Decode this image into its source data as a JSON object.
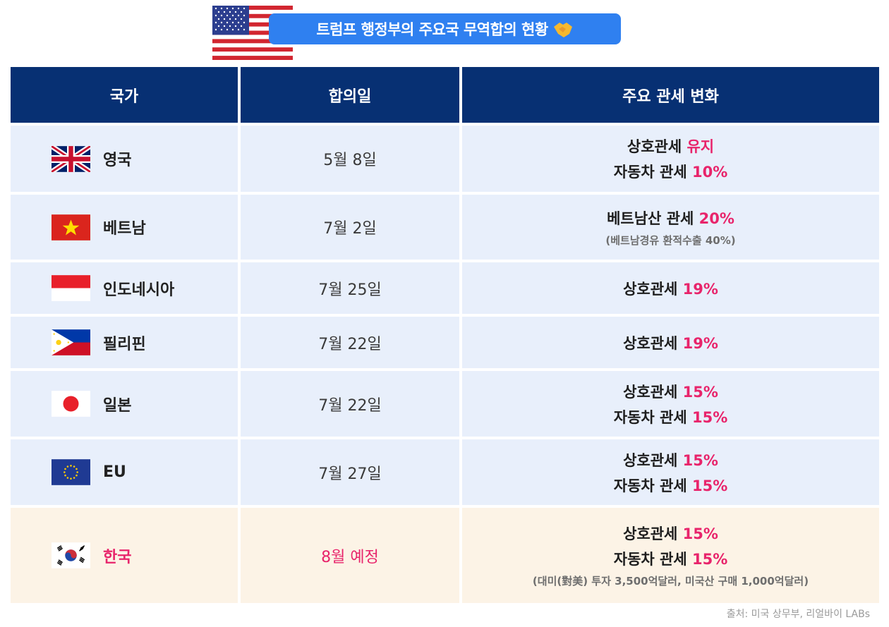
{
  "title": "트럼프 행정부의 주요국 무역합의 현황",
  "header": {
    "col_country": "국가",
    "col_date": "합의일",
    "col_change": "주요 관세 변화"
  },
  "rows": [
    {
      "flag": "uk-flag-icon",
      "country": "영국",
      "date": "5월 8일",
      "l1_label": "상호관세",
      "l1_value": "유지",
      "l2_label": "자동차 관세",
      "l2_value": "10%"
    },
    {
      "flag": "vietnam-flag-icon",
      "country": "베트남",
      "date": "7월 2일",
      "l1_label": "베트남산 관세",
      "l1_value": "20%",
      "note": "(베트남경유 환적수출 40%)"
    },
    {
      "flag": "indonesia-flag-icon",
      "country": "인도네시아",
      "date": "7월 25일",
      "l1_label": "상호관세",
      "l1_value": "19%"
    },
    {
      "flag": "philippines-flag-icon",
      "country": "필리핀",
      "date": "7월 22일",
      "l1_label": "상호관세",
      "l1_value": "19%"
    },
    {
      "flag": "japan-flag-icon",
      "country": "일본",
      "date": "7월 22일",
      "l1_label": "상호관세",
      "l1_value": "15%",
      "l2_label": "자동차 관세",
      "l2_value": "15%"
    },
    {
      "flag": "eu-flag-icon",
      "country": "EU",
      "date": "7월 27일",
      "l1_label": "상호관세",
      "l1_value": "15%",
      "l2_label": "자동차 관세",
      "l2_value": "15%"
    },
    {
      "flag": "korea-flag-icon",
      "country": "한국",
      "date": "8월 예정",
      "l1_label": "상호관세",
      "l1_value": "15%",
      "l2_label": "자동차 관세",
      "l2_value": "15%",
      "note": "(대미(對美) 투자 3,500억달러, 미국산 구매 1,000억달러)"
    }
  ],
  "source": "출처: 미국 상무부, 리얼바이 LABs",
  "colors": {
    "header_bg": "#073073",
    "row_bg": "#e8effb",
    "korea_bg": "#fcf3e6",
    "accent": "#e8246b",
    "title_bg": "#2f80f0"
  }
}
